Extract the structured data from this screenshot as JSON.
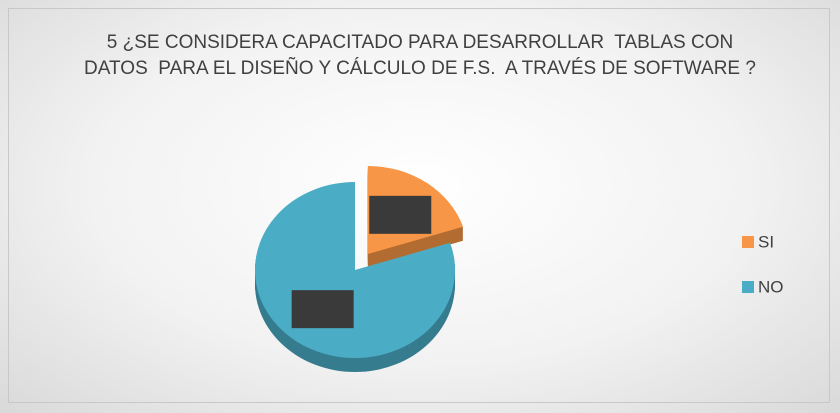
{
  "chart_data": {
    "type": "pie",
    "title": "5 ¿SE CONSIDERA CAPACITADO PARA DESARROLLAR  TABLAS CON DATOS  PARA EL DISEÑO Y CÁLCULO DE F.S.  A TRAVÉS DE SOFTWARE ?",
    "categories": [
      "SI",
      "NO"
    ],
    "values": [
      20,
      80
    ],
    "colors": [
      "#f79646",
      "#4bacc6"
    ],
    "legend": "right"
  }
}
